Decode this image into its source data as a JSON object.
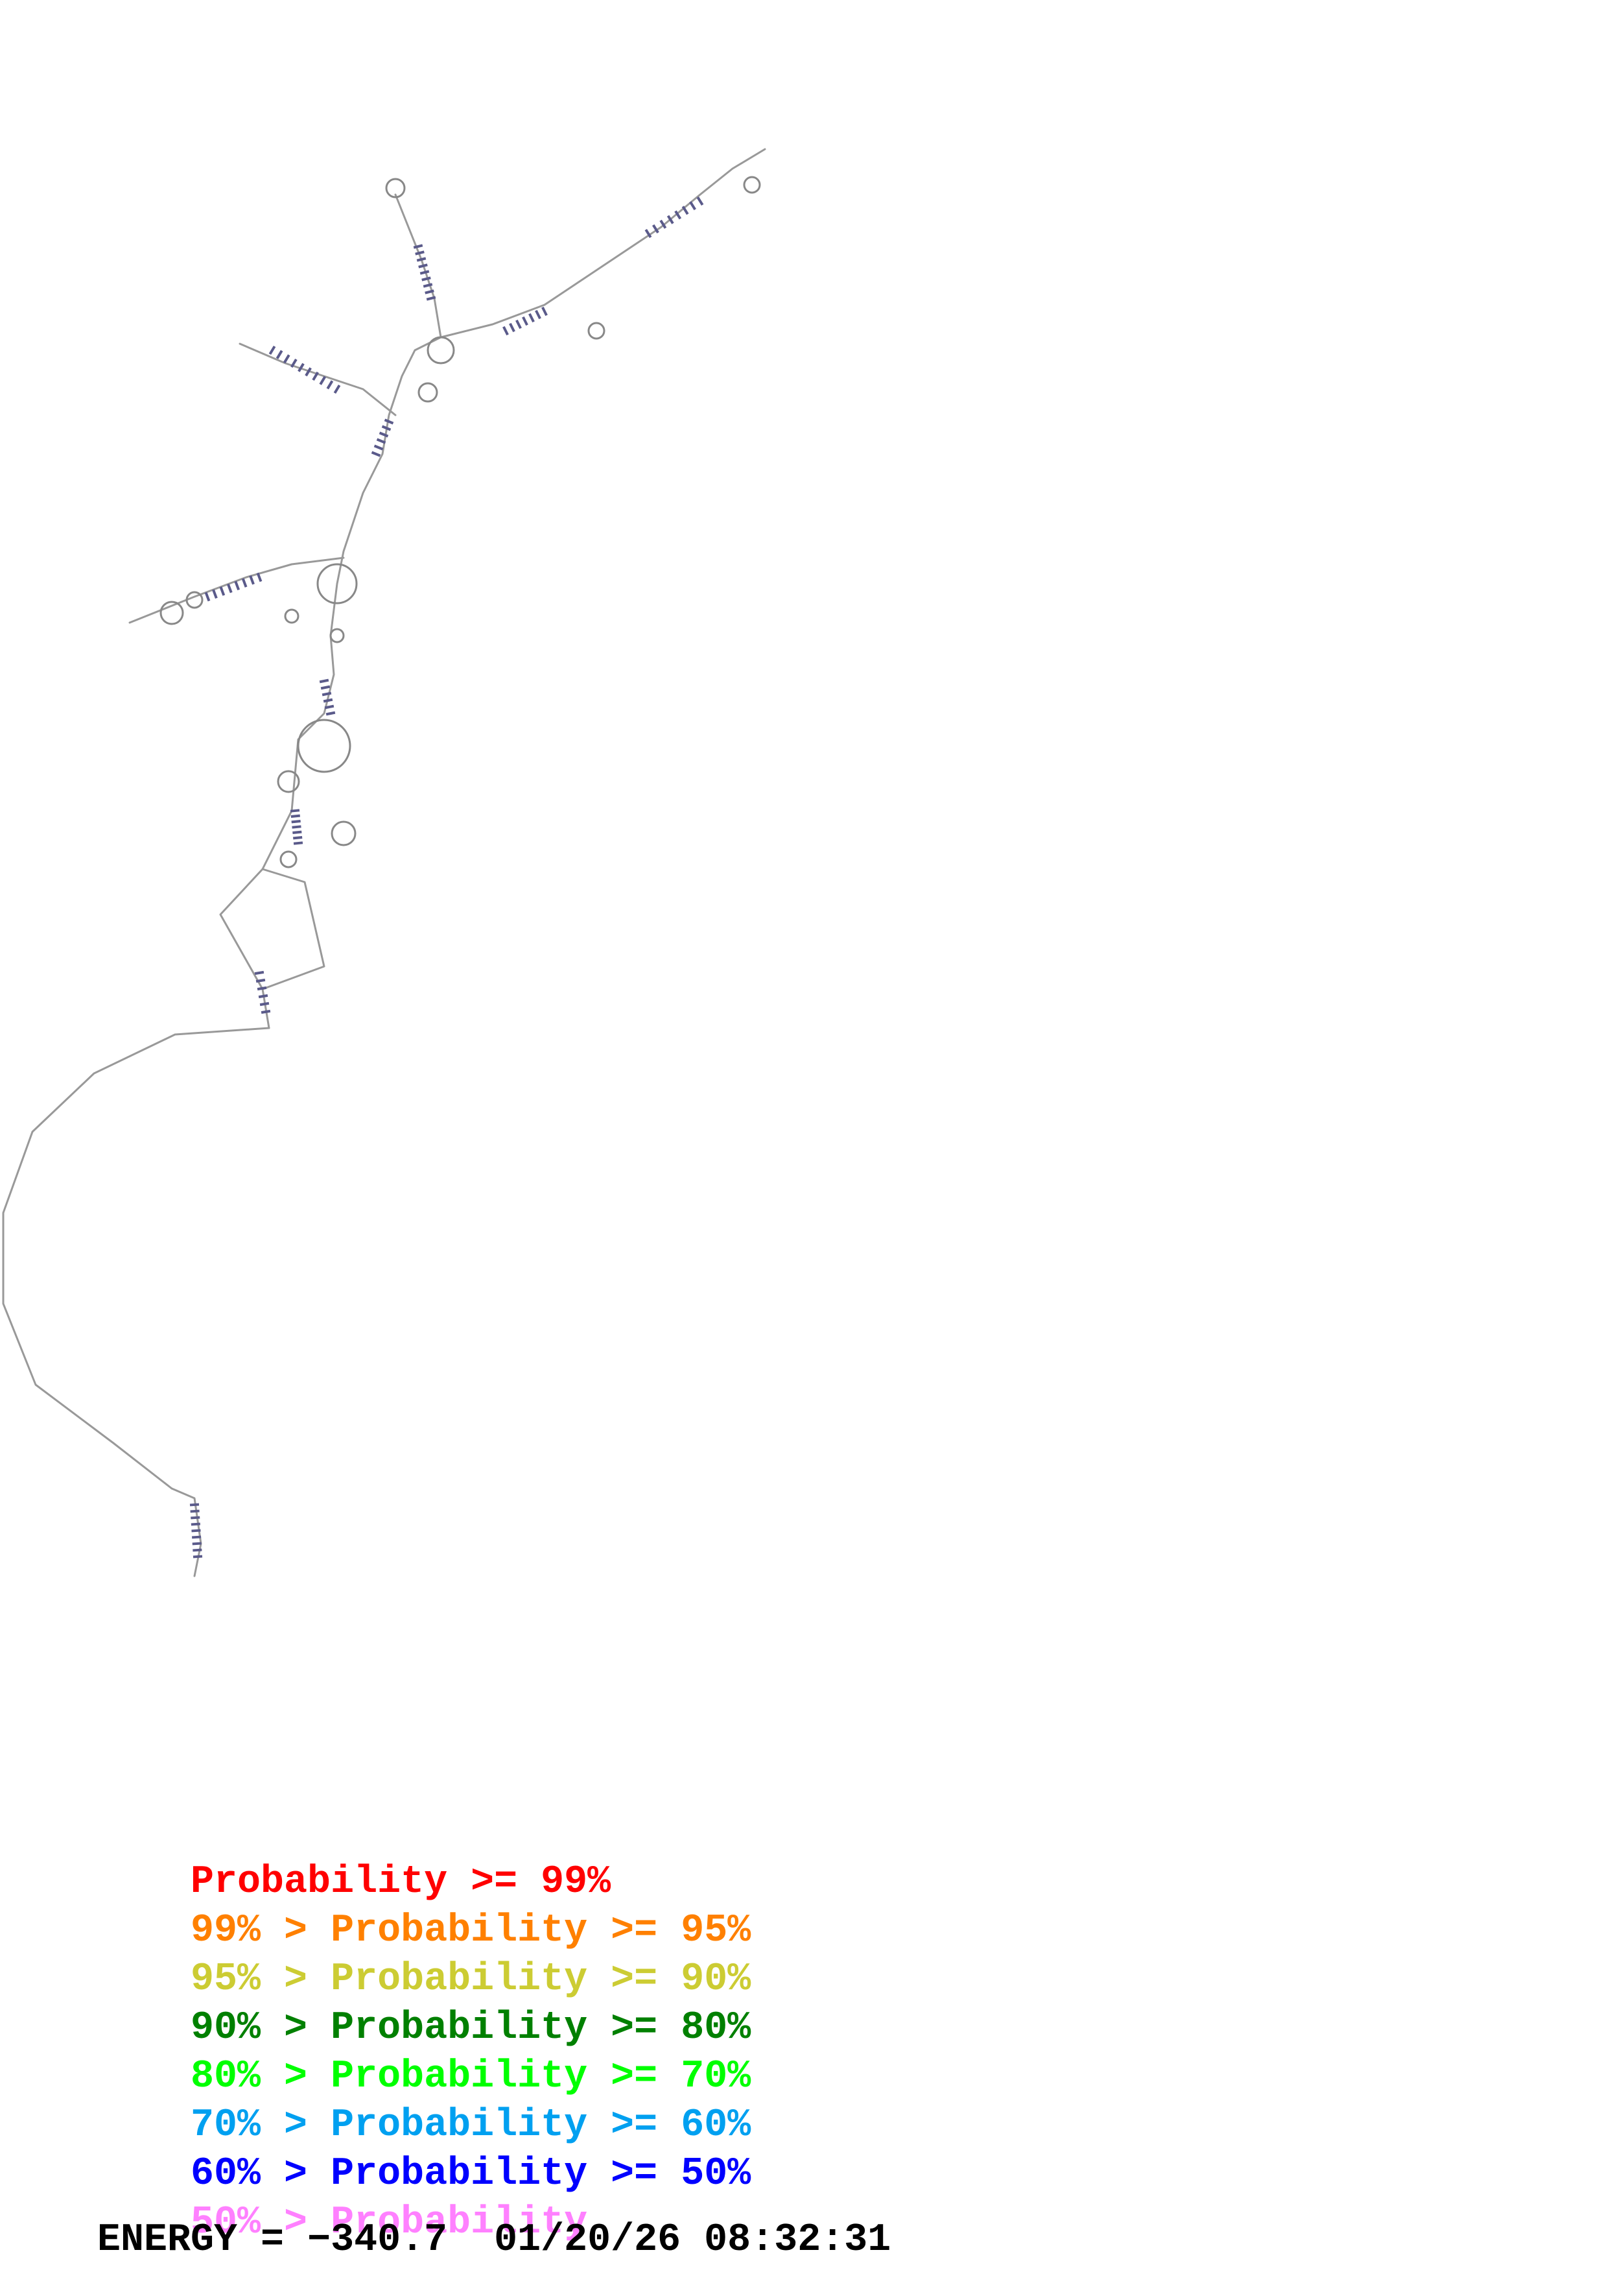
{
  "legend": {
    "rows": [
      {
        "prefix": "",
        "label": "Probability",
        "suffix": ">= 99%",
        "color": "#ff0000"
      },
      {
        "prefix": "99% > ",
        "label": "Probability",
        "suffix": ">= 95%",
        "color": "#ff8000"
      },
      {
        "prefix": "95% > ",
        "label": "Probability",
        "suffix": ">= 90%",
        "color": "#cccc33"
      },
      {
        "prefix": "90% > ",
        "label": "Probability",
        "suffix": ">= 80%",
        "color": "#008000"
      },
      {
        "prefix": "80% > ",
        "label": "Probability",
        "suffix": ">= 70%",
        "color": "#00ff00"
      },
      {
        "prefix": "70% > ",
        "label": "Probability",
        "suffix": ">= 60%",
        "color": "#00a0f0"
      },
      {
        "prefix": "60% > ",
        "label": "Probability",
        "suffix": ">= 50%",
        "color": "#0000ff"
      },
      {
        "prefix": "50% > ",
        "label": "Probability",
        "suffix": "",
        "color": "#ff80ff"
      }
    ]
  },
  "footer": {
    "energy_label": "ENERGY =",
    "energy_value": "−340.7",
    "timestamp": "01/20/26 08:32:31"
  },
  "structure": {
    "line_color": "#999999",
    "pair_color": "#5a5a8a"
  }
}
